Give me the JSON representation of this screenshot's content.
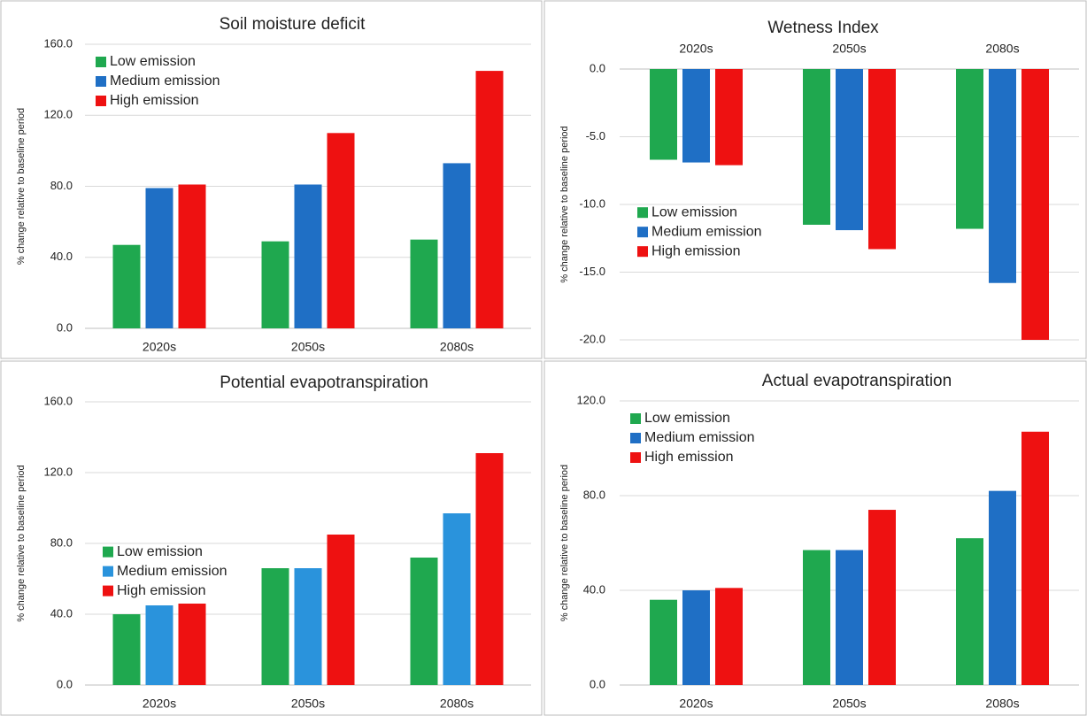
{
  "chart_data": [
    {
      "type": "bar",
      "title": "Soil moisture deficit",
      "y_label": "% change relative to baseline period",
      "categories": [
        "2020s",
        "2050s",
        "2080s"
      ],
      "series": [
        {
          "name": "Low emission",
          "color": "#1fa84f",
          "values": [
            47,
            49,
            50
          ]
        },
        {
          "name": "Medium emission",
          "color": "#1f6fc5",
          "values": [
            79,
            81,
            93
          ]
        },
        {
          "name": "High emission",
          "color": "#ee1111",
          "values": [
            81,
            110,
            145
          ]
        }
      ],
      "ylim": [
        0,
        160
      ],
      "yticks": [
        {
          "value": 0,
          "label": "0.0"
        },
        {
          "value": 40,
          "label": "40.0"
        },
        {
          "value": 80,
          "label": "80.0"
        },
        {
          "value": 120,
          "label": "120.0"
        },
        {
          "value": 160,
          "label": "160.0"
        }
      ],
      "grid": true,
      "legend": "upper left",
      "xaxis_position": "bottom"
    },
    {
      "type": "bar",
      "title": "Wetness Index",
      "y_label": "% change relative to baseline period",
      "categories": [
        "2020s",
        "2050s",
        "2080s"
      ],
      "series": [
        {
          "name": "Low emission",
          "color": "#1fa84f",
          "values": [
            -6.7,
            -11.5,
            -11.8
          ]
        },
        {
          "name": "Medium emission",
          "color": "#1f6fc5",
          "values": [
            -6.9,
            -11.9,
            -15.8
          ]
        },
        {
          "name": "High emission",
          "color": "#ee1111",
          "values": [
            -7.1,
            -13.3,
            -20.0
          ]
        }
      ],
      "ylim": [
        -20,
        0
      ],
      "yticks": [
        {
          "value": 0,
          "label": "0.0"
        },
        {
          "value": -5,
          "label": "-5.0"
        },
        {
          "value": -10,
          "label": "-10.0"
        },
        {
          "value": -15,
          "label": "-15.0"
        },
        {
          "value": -20,
          "label": "-20.0"
        }
      ],
      "grid": true,
      "legend": "center left",
      "xaxis_position": "top"
    },
    {
      "type": "bar",
      "title": "Potential evapotranspiration",
      "y_label": "% change relative to baseline period",
      "categories": [
        "2020s",
        "2050s",
        "2080s"
      ],
      "series": [
        {
          "name": "Low emission",
          "color": "#1fa84f",
          "values": [
            40,
            66,
            72
          ]
        },
        {
          "name": "Medium emission",
          "color": "#2a93dc",
          "values": [
            45,
            66,
            97
          ]
        },
        {
          "name": "High emission",
          "color": "#ee1111",
          "values": [
            46,
            85,
            131
          ]
        }
      ],
      "ylim": [
        0,
        160
      ],
      "yticks": [
        {
          "value": 0,
          "label": "0.0"
        },
        {
          "value": 40,
          "label": "40.0"
        },
        {
          "value": 80,
          "label": "80.0"
        },
        {
          "value": 120,
          "label": "120.0"
        },
        {
          "value": 160,
          "label": "160.0"
        }
      ],
      "grid": true,
      "legend": "center left",
      "xaxis_position": "bottom"
    },
    {
      "type": "bar",
      "title": "Actual evapotranspiration",
      "y_label": "% change relative to baseline period",
      "categories": [
        "2020s",
        "2050s",
        "2080s"
      ],
      "series": [
        {
          "name": "Low emission",
          "color": "#1fa84f",
          "values": [
            36,
            57,
            62
          ]
        },
        {
          "name": "Medium emission",
          "color": "#1f6fc5",
          "values": [
            40,
            57,
            82
          ]
        },
        {
          "name": "High emission",
          "color": "#ee1111",
          "values": [
            41,
            74,
            107
          ]
        }
      ],
      "ylim": [
        0,
        120
      ],
      "yticks": [
        {
          "value": 0,
          "label": "0.0"
        },
        {
          "value": 40,
          "label": "40.0"
        },
        {
          "value": 80,
          "label": "80.0"
        },
        {
          "value": 120,
          "label": "120.0"
        }
      ],
      "grid": true,
      "legend": "upper left",
      "xaxis_position": "bottom"
    }
  ]
}
